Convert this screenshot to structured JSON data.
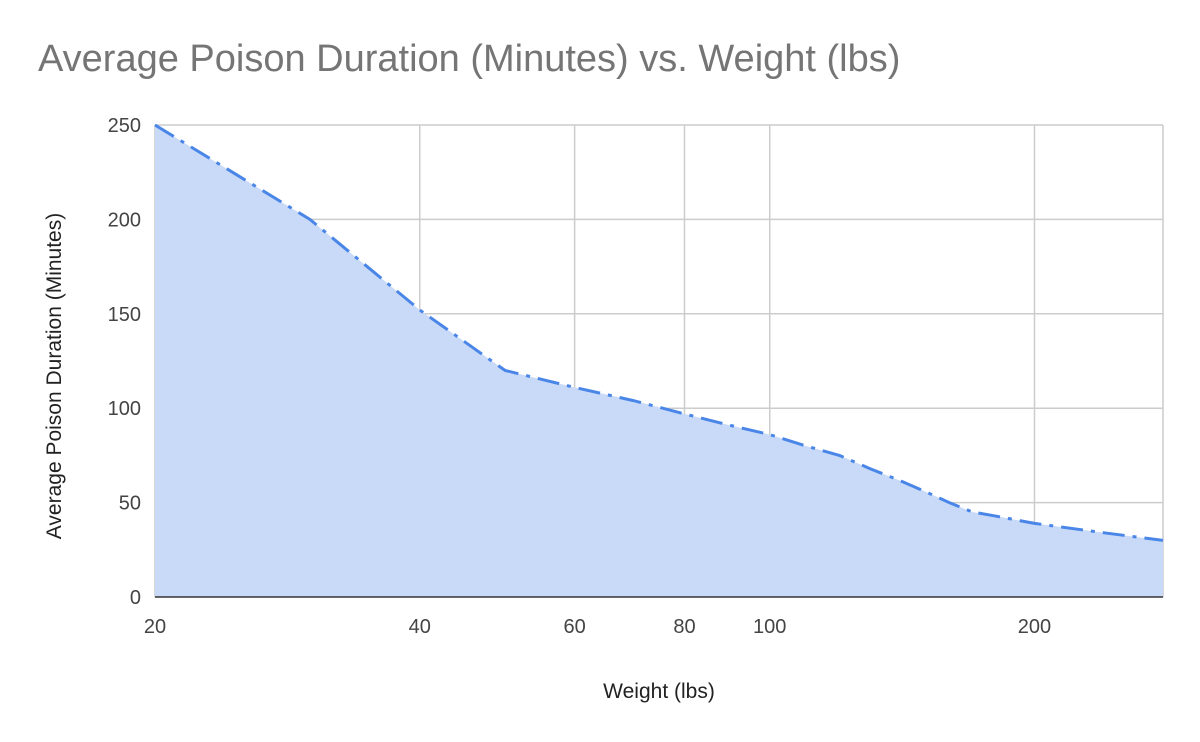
{
  "chart_data": {
    "type": "area",
    "title": "Average Poison Duration (Minutes) vs. Weight (lbs)",
    "xlabel": "Weight (lbs)",
    "ylabel": "Average Poison Duration (Minutes)",
    "x_scale": "log",
    "xlim": [
      20,
      280
    ],
    "ylim": [
      0,
      250
    ],
    "x_ticks": [
      20,
      40,
      60,
      80,
      100,
      200
    ],
    "y_ticks": [
      0,
      50,
      100,
      150,
      200,
      250
    ],
    "grid": true,
    "legend": "none",
    "series": [
      {
        "x": [
          20,
          30,
          40,
          50,
          60,
          70,
          80,
          90,
          100,
          110,
          120,
          130,
          140,
          150,
          160,
          170,
          180,
          200,
          240,
          280
        ],
        "values": [
          250,
          200,
          152,
          120,
          111,
          104,
          97,
          91,
          86,
          80,
          75,
          68,
          62,
          56,
          50,
          45,
          43,
          39,
          34,
          30
        ],
        "line_color": "#4a86e8",
        "fill_color": "#c9daf8"
      }
    ]
  }
}
